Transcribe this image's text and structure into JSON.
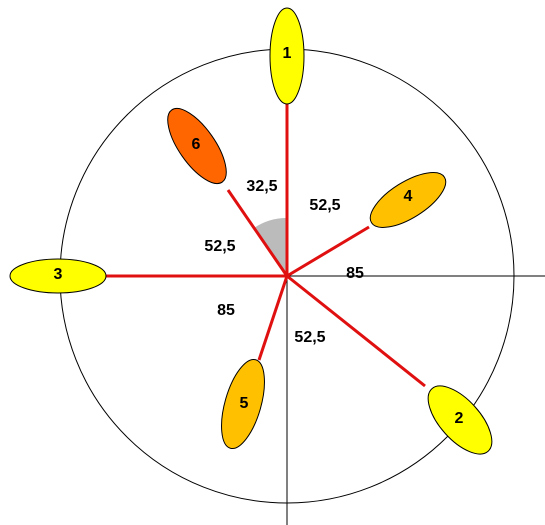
{
  "nodes": [
    {
      "label": "1"
    },
    {
      "label": "2"
    },
    {
      "label": "3"
    },
    {
      "label": "4"
    },
    {
      "label": "5"
    },
    {
      "label": "6"
    }
  ],
  "angles": [
    "32,5",
    "52,5",
    "52,5",
    "85",
    "85",
    "52,5"
  ]
}
